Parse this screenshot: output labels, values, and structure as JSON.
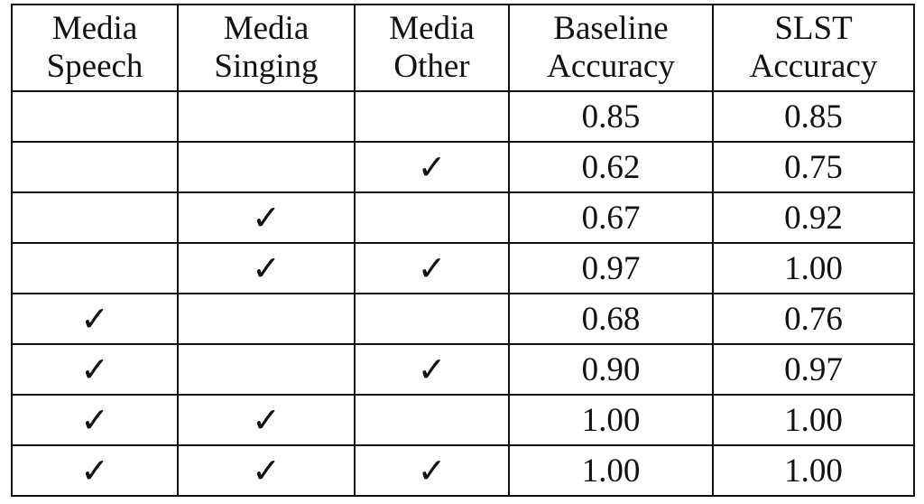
{
  "table": {
    "header": [
      "Media\nSpeech",
      "Media\nSinging",
      "Media\nOther",
      "Baseline\nAccuracy",
      "SLST\nAccuracy"
    ],
    "rows": [
      [
        null,
        null,
        null,
        "0.85",
        "0.85"
      ],
      [
        null,
        null,
        "✓",
        "0.62",
        "0.75"
      ],
      [
        null,
        "✓",
        null,
        "0.67",
        "0.92"
      ],
      [
        null,
        "✓",
        "✓",
        "0.97",
        "1.00"
      ],
      [
        "✓",
        null,
        null,
        "0.68",
        "0.76"
      ],
      [
        "✓",
        null,
        "✓",
        "0.90",
        "0.97"
      ],
      [
        "✓",
        "✓",
        null,
        "1.00",
        "1.00"
      ],
      [
        "✓",
        "✓",
        "✓",
        "1.00",
        "1.00"
      ]
    ]
  }
}
